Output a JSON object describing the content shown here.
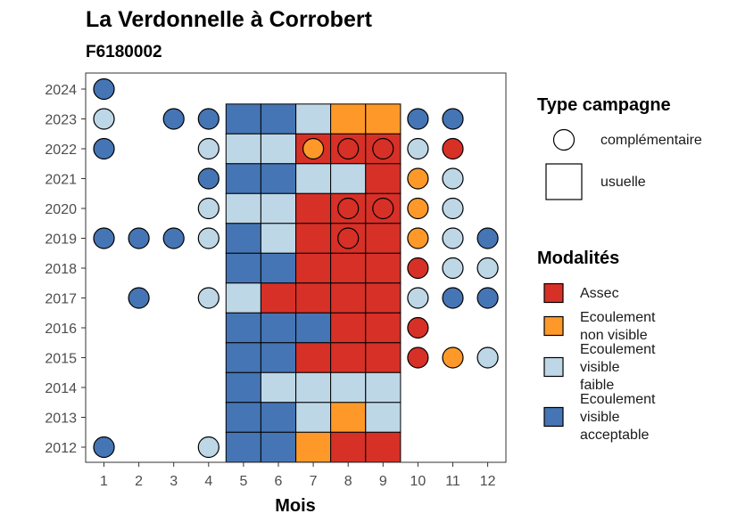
{
  "chart_data": {
    "type": "heatmap",
    "title": "La Verdonnelle à Corrobert",
    "subtitle": "F6180002",
    "xlabel": "Mois",
    "ylabel": "",
    "x_ticks": [
      "1",
      "2",
      "3",
      "4",
      "5",
      "6",
      "7",
      "8",
      "9",
      "10",
      "11",
      "12"
    ],
    "y_ticks": [
      "2012",
      "2013",
      "2014",
      "2015",
      "2016",
      "2017",
      "2018",
      "2019",
      "2020",
      "2021",
      "2022",
      "2023",
      "2024"
    ],
    "legend_shape": {
      "title": "Type campagne",
      "items": [
        {
          "shape": "circle",
          "label": "complémentaire"
        },
        {
          "shape": "square",
          "label": "usuelle"
        }
      ]
    },
    "legend_fill": {
      "title": "Modalités",
      "items": [
        {
          "key": "assec",
          "lines": [
            "Assec"
          ],
          "color": "#D73027"
        },
        {
          "key": "nonvis",
          "lines": [
            "Ecoulement",
            "non visible"
          ],
          "color": "#FE9929"
        },
        {
          "key": "faible",
          "lines": [
            "Ecoulement",
            "visible",
            "faible"
          ],
          "color": "#BDD7E7"
        },
        {
          "key": "accept",
          "lines": [
            "Ecoulement",
            "visible",
            "acceptable"
          ],
          "color": "#4575B4"
        }
      ]
    },
    "tiles": [
      {
        "year": 2023,
        "months": [
          5,
          6,
          7,
          8,
          9
        ],
        "values": [
          "accept",
          "accept",
          "faible",
          "nonvis",
          "nonvis"
        ]
      },
      {
        "year": 2022,
        "months": [
          5,
          6,
          7,
          8,
          9
        ],
        "values": [
          "faible",
          "faible",
          "assec",
          "assec",
          "assec"
        ]
      },
      {
        "year": 2021,
        "months": [
          5,
          6,
          7,
          8,
          9
        ],
        "values": [
          "accept",
          "accept",
          "faible",
          "faible",
          "assec"
        ]
      },
      {
        "year": 2020,
        "months": [
          5,
          6,
          7,
          8,
          9
        ],
        "values": [
          "faible",
          "faible",
          "assec",
          "assec",
          "assec"
        ]
      },
      {
        "year": 2019,
        "months": [
          5,
          6,
          7,
          8,
          9
        ],
        "values": [
          "accept",
          "faible",
          "assec",
          "assec",
          "assec"
        ]
      },
      {
        "year": 2018,
        "months": [
          5,
          6,
          7,
          8,
          9
        ],
        "values": [
          "accept",
          "accept",
          "assec",
          "assec",
          "assec"
        ]
      },
      {
        "year": 2017,
        "months": [
          5,
          6,
          7,
          8,
          9
        ],
        "values": [
          "faible",
          "assec",
          "assec",
          "assec",
          "assec"
        ]
      },
      {
        "year": 2016,
        "months": [
          5,
          6,
          7,
          8,
          9
        ],
        "values": [
          "accept",
          "accept",
          "accept",
          "assec",
          "assec"
        ]
      },
      {
        "year": 2015,
        "months": [
          5,
          6,
          7,
          8,
          9
        ],
        "values": [
          "accept",
          "accept",
          "assec",
          "assec",
          "assec"
        ]
      },
      {
        "year": 2014,
        "months": [
          5,
          6,
          7,
          8,
          9
        ],
        "values": [
          "accept",
          "faible",
          "faible",
          "faible",
          "faible"
        ]
      },
      {
        "year": 2013,
        "months": [
          5,
          6,
          7,
          8,
          9
        ],
        "values": [
          "accept",
          "accept",
          "faible",
          "nonvis",
          "faible"
        ]
      },
      {
        "year": 2012,
        "months": [
          5,
          6,
          7,
          8,
          9
        ],
        "values": [
          "accept",
          "accept",
          "nonvis",
          "assec",
          "assec"
        ]
      }
    ],
    "points": [
      {
        "year": 2024,
        "month": 1,
        "value": "accept"
      },
      {
        "year": 2023,
        "month": 1,
        "value": "faible"
      },
      {
        "year": 2023,
        "month": 3,
        "value": "accept"
      },
      {
        "year": 2023,
        "month": 4,
        "value": "accept"
      },
      {
        "year": 2023,
        "month": 10,
        "value": "accept"
      },
      {
        "year": 2023,
        "month": 11,
        "value": "accept"
      },
      {
        "year": 2022,
        "month": 1,
        "value": "accept"
      },
      {
        "year": 2022,
        "month": 4,
        "value": "faible"
      },
      {
        "year": 2022,
        "month": 7,
        "value": "nonvis"
      },
      {
        "year": 2022,
        "month": 8,
        "value": "assec"
      },
      {
        "year": 2022,
        "month": 9,
        "value": "assec"
      },
      {
        "year": 2022,
        "month": 10,
        "value": "faible"
      },
      {
        "year": 2022,
        "month": 11,
        "value": "assec"
      },
      {
        "year": 2021,
        "month": 4,
        "value": "accept"
      },
      {
        "year": 2021,
        "month": 10,
        "value": "nonvis"
      },
      {
        "year": 2021,
        "month": 11,
        "value": "faible"
      },
      {
        "year": 2020,
        "month": 4,
        "value": "faible"
      },
      {
        "year": 2020,
        "month": 8,
        "value": "assec"
      },
      {
        "year": 2020,
        "month": 9,
        "value": "assec"
      },
      {
        "year": 2020,
        "month": 10,
        "value": "nonvis"
      },
      {
        "year": 2020,
        "month": 11,
        "value": "faible"
      },
      {
        "year": 2019,
        "month": 1,
        "value": "accept"
      },
      {
        "year": 2019,
        "month": 2,
        "value": "accept"
      },
      {
        "year": 2019,
        "month": 3,
        "value": "accept"
      },
      {
        "year": 2019,
        "month": 4,
        "value": "faible"
      },
      {
        "year": 2019,
        "month": 8,
        "value": "assec"
      },
      {
        "year": 2019,
        "month": 10,
        "value": "nonvis"
      },
      {
        "year": 2019,
        "month": 11,
        "value": "faible"
      },
      {
        "year": 2019,
        "month": 12,
        "value": "accept"
      },
      {
        "year": 2018,
        "month": 10,
        "value": "assec"
      },
      {
        "year": 2018,
        "month": 11,
        "value": "faible"
      },
      {
        "year": 2018,
        "month": 12,
        "value": "faible"
      },
      {
        "year": 2017,
        "month": 2,
        "value": "accept"
      },
      {
        "year": 2017,
        "month": 4,
        "value": "faible"
      },
      {
        "year": 2017,
        "month": 10,
        "value": "faible"
      },
      {
        "year": 2017,
        "month": 11,
        "value": "accept"
      },
      {
        "year": 2017,
        "month": 12,
        "value": "accept"
      },
      {
        "year": 2016,
        "month": 10,
        "value": "assec"
      },
      {
        "year": 2015,
        "month": 10,
        "value": "assec"
      },
      {
        "year": 2015,
        "month": 11,
        "value": "nonvis"
      },
      {
        "year": 2015,
        "month": 12,
        "value": "faible"
      },
      {
        "year": 2012,
        "month": 1,
        "value": "accept"
      },
      {
        "year": 2012,
        "month": 4,
        "value": "faible"
      }
    ]
  }
}
